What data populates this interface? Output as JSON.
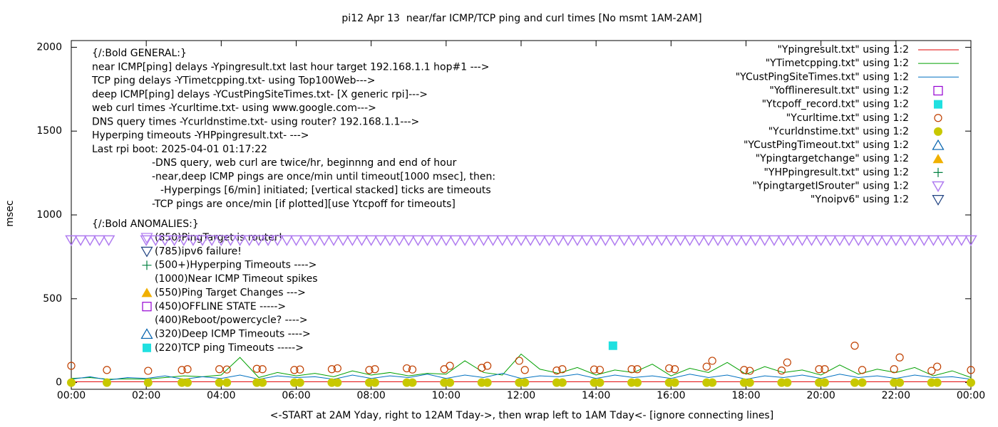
{
  "chart_data": {
    "type": "line",
    "title": "pi12 Apr 13  near/far ICMP/TCP ping and curl times [No msmt 1AM-2AM]",
    "xlabel": "<-START at 2AM Yday, right to 12AM Tday->, then wrap left to 1AM Tday<- [ignore connecting lines]",
    "ylabel": "msec",
    "xlim": [
      0,
      24
    ],
    "ylim": [
      -40,
      2040
    ],
    "xticks": [
      {
        "value": 0,
        "label": "00:00"
      },
      {
        "value": 2,
        "label": "02:00"
      },
      {
        "value": 4,
        "label": "04:00"
      },
      {
        "value": 6,
        "label": "06:00"
      },
      {
        "value": 8,
        "label": "08:00"
      },
      {
        "value": 10,
        "label": "10:00"
      },
      {
        "value": 12,
        "label": "12:00"
      },
      {
        "value": 14,
        "label": "14:00"
      },
      {
        "value": 16,
        "label": "16:00"
      },
      {
        "value": 18,
        "label": "18:00"
      },
      {
        "value": 20,
        "label": "20:00"
      },
      {
        "value": 22,
        "label": "22:00"
      },
      {
        "value": 24,
        "label": "00:00"
      }
    ],
    "yticks": [
      0,
      500,
      1000,
      1500,
      2000
    ],
    "grid": false,
    "legend": "top-right",
    "annotations": [
      "{/:Bold GENERAL:}",
      "near ICMP[ping] delays -Ypingresult.txt last hour target 192.168.1.1 hop#1 --->",
      "TCP ping delays -YTimetcpping.txt- using Top100Web--->",
      "deep ICMP[ping] delays -YCustPingSiteTimes.txt- [X generic rpi]--->",
      "web curl times -Ycurltime.txt- using www.google.com--->",
      "DNS query times -Ycurldnstime.txt- using router? 192.168.1.1--->",
      "Hyperping timeouts -YHPpingresult.txt- --->",
      "Last rpi boot: 2025-04-01 01:17:22",
      "-DNS query, web curl are twice/hr, beginnng and end of hour",
      "-near,deep ICMP pings are once/min until timeout[1000 msec], then:",
      "-Hyperpings [6/min] initiated; [vertical stacked] ticks are timeouts",
      "-TCP pings are once/min [if plotted][use Ytcpoff for timeouts]",
      "{/:Bold ANOMALIES:}",
      "(850)PingTarget is router!",
      "(785)ipv6 failure!",
      "(500+)Hyperping Timeouts ---->",
      "(1000)Near ICMP Timeout spikes",
      "(550)Ping Target Changes --->",
      "(450)OFFLINE STATE ----->",
      "(400)Reboot/powercycle? ---->",
      "(320)Deep ICMP Timeouts ---->",
      "(220)TCP ping Timeouts ----->"
    ],
    "series": [
      {
        "name": "\"Ypingresult.txt\" using 1:2",
        "color": "#e00000",
        "style": "line",
        "x": [
          0,
          6,
          12,
          18,
          24
        ],
        "values": [
          5,
          5,
          5,
          5,
          5
        ]
      },
      {
        "name": "\"YTimetcpping.txt\" using 1:2",
        "color": "#00a000",
        "style": "line",
        "x": [
          0,
          0.5,
          1,
          1.5,
          2,
          2.5,
          3,
          3.5,
          4,
          4.5,
          5,
          5.5,
          6,
          6.5,
          7,
          7.5,
          8,
          8.5,
          9,
          9.5,
          10,
          10.5,
          11,
          11.5,
          12,
          12.5,
          13,
          13.5,
          14,
          14.5,
          15,
          15.5,
          16,
          16.5,
          17,
          17.5,
          18,
          18.5,
          19,
          19.5,
          20,
          20.5,
          21,
          21.5,
          22,
          22.5,
          23,
          23.5,
          24
        ],
        "values": [
          25,
          30,
          20,
          22,
          20,
          30,
          40,
          35,
          45,
          150,
          30,
          60,
          40,
          55,
          35,
          70,
          45,
          60,
          40,
          55,
          50,
          130,
          60,
          45,
          170,
          80,
          55,
          90,
          45,
          75,
          60,
          110,
          40,
          85,
          60,
          120,
          50,
          95,
          60,
          75,
          45,
          105,
          50,
          80,
          60,
          90,
          40,
          70,
          30
        ]
      },
      {
        "name": "\"YCustPingSiteTimes.txt\" using 1:2",
        "color": "#0070c0",
        "style": "line",
        "x": [
          0,
          0.5,
          1,
          1.5,
          2,
          2.5,
          3,
          3.5,
          4,
          4.5,
          5,
          5.5,
          6,
          6.5,
          7,
          7.5,
          8,
          8.5,
          9,
          9.5,
          10,
          10.5,
          11,
          11.5,
          12,
          12.5,
          13,
          13.5,
          14,
          14.5,
          15,
          15.5,
          16,
          16.5,
          17,
          17.5,
          18,
          18.5,
          19,
          19.5,
          20,
          20.5,
          21,
          21.5,
          22,
          22.5,
          23,
          23.5,
          24
        ],
        "values": [
          20,
          35,
          15,
          30,
          25,
          40,
          20,
          35,
          25,
          45,
          20,
          40,
          30,
          35,
          20,
          45,
          25,
          40,
          30,
          50,
          25,
          45,
          30,
          55,
          25,
          40,
          35,
          50,
          25,
          45,
          30,
          40,
          25,
          50,
          30,
          45,
          20,
          40,
          30,
          45,
          25,
          50,
          30,
          40,
          25,
          45,
          30,
          35,
          20
        ]
      },
      {
        "name": "\"Yofflineresult.txt\" using 1:2",
        "color": "#9400d3",
        "style": "points",
        "marker": "square-open",
        "x": [],
        "values": []
      },
      {
        "name": "\"Ytcpoff_record.txt\" using 1:2",
        "color": "#20e0e0",
        "style": "points",
        "marker": "square",
        "x": [
          14.45
        ],
        "values": [
          220
        ]
      },
      {
        "name": "\"Ycurltime.txt\" using 1:2",
        "color": "#c04000",
        "style": "points",
        "marker": "circle-open",
        "x": [
          0,
          0.95,
          2.05,
          2.95,
          3.1,
          3.95,
          4.15,
          4.95,
          5.1,
          5.95,
          6.1,
          6.95,
          7.1,
          7.95,
          8.1,
          8.95,
          9.1,
          9.95,
          10.1,
          10.95,
          11.1,
          11.95,
          12.1,
          12.95,
          13.1,
          13.95,
          14.1,
          14.95,
          15.1,
          15.95,
          16.1,
          16.95,
          17.1,
          17.95,
          18.1,
          18.95,
          19.1,
          19.95,
          20.1,
          20.9,
          21.1,
          21.95,
          22.1,
          22.95,
          23.1,
          24
        ],
        "values": [
          100,
          75,
          70,
          75,
          80,
          80,
          78,
          82,
          80,
          75,
          78,
          80,
          85,
          75,
          80,
          85,
          78,
          80,
          100,
          88,
          100,
          130,
          75,
          72,
          80,
          78,
          76,
          80,
          80,
          85,
          80,
          95,
          130,
          75,
          70,
          72,
          120,
          80,
          80,
          220,
          75,
          80,
          150,
          70,
          95,
          75
        ]
      },
      {
        "name": "\"Ycurldnstime.txt\" using 1:2",
        "color": "#c8c800",
        "style": "points",
        "marker": "circle",
        "x": [
          0,
          0.95,
          2.05,
          2.95,
          3.1,
          3.95,
          4.15,
          4.95,
          5.1,
          5.95,
          6.1,
          6.95,
          7.1,
          7.95,
          8.1,
          8.95,
          9.1,
          9.95,
          10.1,
          10.95,
          11.1,
          11.95,
          12.1,
          12.95,
          13.1,
          13.95,
          14.1,
          14.95,
          15.1,
          15.95,
          16.1,
          16.95,
          17.1,
          17.95,
          18.1,
          18.95,
          19.1,
          19.95,
          20.1,
          20.9,
          21.1,
          21.95,
          22.1,
          22.95,
          23.1,
          24
        ],
        "values": [
          0,
          0,
          0,
          0,
          0,
          0,
          0,
          0,
          0,
          0,
          0,
          0,
          0,
          0,
          0,
          0,
          0,
          0,
          0,
          0,
          0,
          0,
          0,
          0,
          0,
          0,
          0,
          0,
          0,
          0,
          0,
          0,
          0,
          0,
          0,
          0,
          0,
          0,
          0,
          0,
          0,
          0,
          0,
          0,
          0,
          0
        ]
      },
      {
        "name": "\"YCustPingTimeout.txt\" using 1:2",
        "color": "#0060ad",
        "style": "points",
        "marker": "triangle-open",
        "x": [],
        "values": []
      },
      {
        "name": "\"Ypingtargetchange\" using 1:2",
        "color": "#f0b000",
        "style": "points",
        "marker": "triangle",
        "x": [],
        "values": []
      },
      {
        "name": "\"YHPpingresult.txt\" using 1:2",
        "color": "#008040",
        "style": "points",
        "marker": "plus",
        "x": [],
        "values": []
      },
      {
        "name": "\"YpingtargetISrouter\" using 1:2",
        "color": "#b07cf0",
        "style": "points",
        "marker": "tri-down",
        "x": [
          0,
          0.25,
          0.5,
          0.75,
          1,
          2,
          2.25,
          2.5,
          2.75,
          3,
          3.25,
          3.5,
          3.75,
          4,
          4.25,
          4.5,
          4.75,
          5,
          5.25,
          5.5,
          5.75,
          6,
          6.25,
          6.5,
          6.75,
          7,
          7.25,
          7.5,
          7.75,
          8,
          8.25,
          8.5,
          8.75,
          9,
          9.25,
          9.5,
          9.75,
          10,
          10.25,
          10.5,
          10.75,
          11,
          11.25,
          11.5,
          11.75,
          12,
          12.25,
          12.5,
          12.75,
          13,
          13.25,
          13.5,
          13.75,
          14,
          14.25,
          14.5,
          14.75,
          15,
          15.25,
          15.5,
          15.75,
          16,
          16.25,
          16.5,
          16.75,
          17,
          17.25,
          17.5,
          17.75,
          18,
          18.25,
          18.5,
          18.75,
          19,
          19.25,
          19.5,
          19.75,
          20,
          20.25,
          20.5,
          20.75,
          21,
          21.25,
          21.5,
          21.75,
          22,
          22.25,
          22.5,
          22.75,
          23,
          23.25,
          23.5,
          23.75,
          24
        ],
        "values": [
          850,
          850,
          850,
          850,
          850,
          850,
          850,
          850,
          850,
          850,
          850,
          850,
          850,
          850,
          850,
          850,
          850,
          850,
          850,
          850,
          850,
          850,
          850,
          850,
          850,
          850,
          850,
          850,
          850,
          850,
          850,
          850,
          850,
          850,
          850,
          850,
          850,
          850,
          850,
          850,
          850,
          850,
          850,
          850,
          850,
          850,
          850,
          850,
          850,
          850,
          850,
          850,
          850,
          850,
          850,
          850,
          850,
          850,
          850,
          850,
          850,
          850,
          850,
          850,
          850,
          850,
          850,
          850,
          850,
          850,
          850,
          850,
          850,
          850,
          850,
          850,
          850,
          850,
          850,
          850,
          850,
          850,
          850,
          850,
          850,
          850,
          850,
          850,
          850,
          850,
          850,
          850,
          850,
          850
        ]
      },
      {
        "name": "\"Ynoipv6\" using 1:2",
        "color": "#1e4080",
        "style": "points",
        "marker": "tri-down-open",
        "x": [],
        "values": []
      }
    ]
  }
}
